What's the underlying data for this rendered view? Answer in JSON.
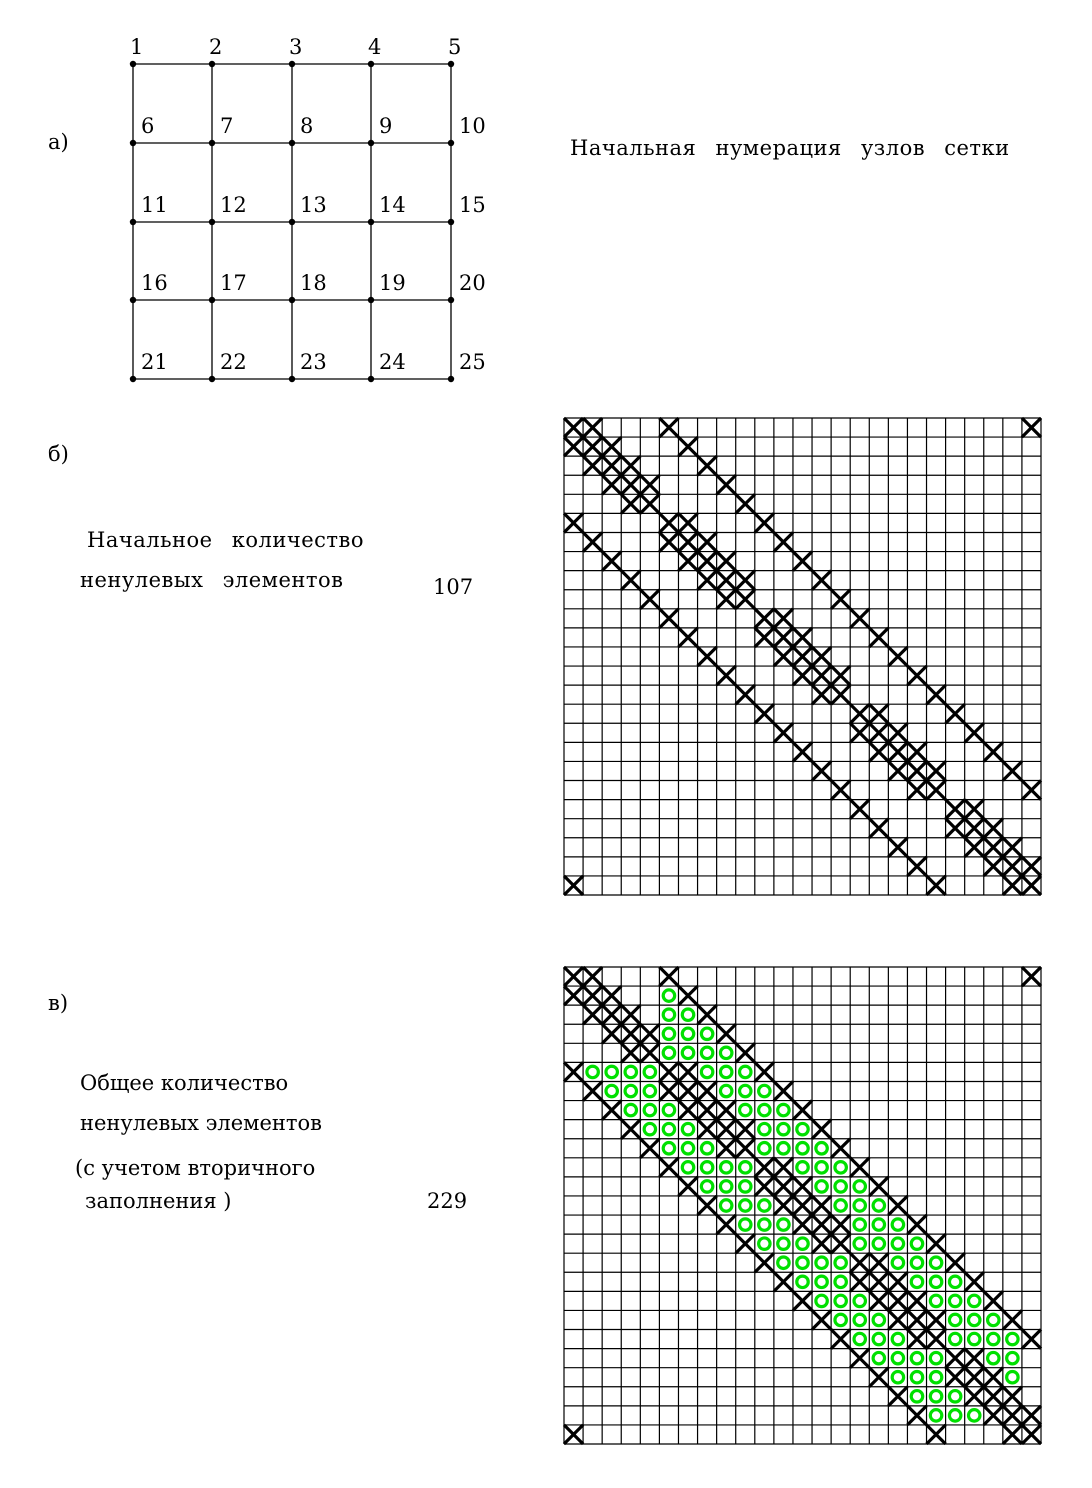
{
  "part_a": {
    "label": "а)",
    "caption": "Начальная нумерация узлов сетки",
    "node_labels": [
      "1",
      "2",
      "3",
      "4",
      "5",
      "6",
      "7",
      "8",
      "9",
      "10",
      "11",
      "12",
      "13",
      "14",
      "15",
      "16",
      "17",
      "18",
      "19",
      "20",
      "21",
      "22",
      "23",
      "24",
      "25"
    ]
  },
  "part_b": {
    "label": "б)",
    "caption_line1": "Начальное количество",
    "caption_line2": "ненулевых элементов",
    "count": "107"
  },
  "part_c": {
    "label": "в)",
    "caption_line1": "Общее количество",
    "caption_line2": "ненулевых элементов",
    "caption_line3": "(с учетом вторичного",
    "caption_line4": "заполнения )",
    "count": "229"
  },
  "matrix": {
    "size": 25,
    "nonzero_color": "#000000",
    "fill_color": "#00e000",
    "nonzeros": [
      [
        1,
        2,
        6,
        25
      ],
      [
        1,
        2,
        3,
        7
      ],
      [
        2,
        3,
        4,
        8
      ],
      [
        3,
        4,
        5,
        9
      ],
      [
        4,
        5,
        10
      ],
      [
        1,
        6,
        7,
        11
      ],
      [
        2,
        6,
        7,
        8,
        12
      ],
      [
        3,
        7,
        8,
        9,
        13
      ],
      [
        4,
        8,
        9,
        10,
        14
      ],
      [
        5,
        9,
        10,
        15
      ],
      [
        6,
        11,
        12,
        16
      ],
      [
        7,
        11,
        12,
        13,
        17
      ],
      [
        8,
        12,
        13,
        14,
        18
      ],
      [
        9,
        13,
        14,
        15,
        19
      ],
      [
        10,
        14,
        15,
        20
      ],
      [
        11,
        16,
        17,
        21
      ],
      [
        12,
        16,
        17,
        18,
        22
      ],
      [
        13,
        17,
        18,
        19,
        23
      ],
      [
        14,
        18,
        19,
        20,
        24
      ],
      [
        15,
        19,
        20,
        25
      ],
      [
        16,
        21,
        22
      ],
      [
        17,
        21,
        22,
        23
      ],
      [
        18,
        22,
        23,
        24
      ],
      [
        19,
        23,
        24,
        25
      ],
      [
        1,
        20,
        24,
        25
      ]
    ],
    "fill_in": [
      [],
      [
        6
      ],
      [
        6,
        7
      ],
      [
        6,
        7,
        8
      ],
      [
        6,
        7,
        8,
        9
      ],
      [
        2,
        3,
        4,
        5,
        8,
        9,
        10
      ],
      [
        3,
        4,
        5,
        9,
        10,
        11
      ],
      [
        4,
        5,
        6,
        10,
        11,
        12
      ],
      [
        5,
        6,
        7,
        11,
        12,
        13
      ],
      [
        6,
        7,
        8,
        11,
        12,
        13,
        14
      ],
      [
        7,
        8,
        9,
        10,
        13,
        14,
        15
      ],
      [
        8,
        9,
        10,
        14,
        15,
        16
      ],
      [
        9,
        10,
        11,
        15,
        16,
        17
      ],
      [
        10,
        11,
        12,
        16,
        17,
        18
      ],
      [
        11,
        12,
        13,
        16,
        17,
        18,
        19
      ],
      [
        12,
        13,
        14,
        15,
        18,
        19,
        20
      ],
      [
        13,
        14,
        15,
        19,
        20,
        21
      ],
      [
        14,
        15,
        16,
        20,
        21,
        22
      ],
      [
        15,
        16,
        17,
        21,
        22,
        23
      ],
      [
        16,
        17,
        18,
        21,
        22,
        23,
        24
      ],
      [
        17,
        18,
        19,
        20,
        23,
        24
      ],
      [
        18,
        19,
        20,
        24
      ],
      [
        19,
        20,
        21
      ],
      [
        20,
        21,
        22
      ],
      []
    ]
  }
}
